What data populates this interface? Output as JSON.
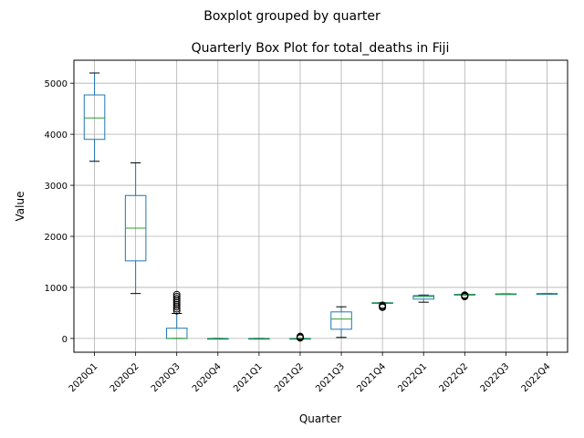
{
  "chart_data": {
    "type": "box",
    "suptitle": "Boxplot grouped by quarter",
    "title": "Quarterly Box Plot for total_deaths in Fiji",
    "xlabel": "Quarter",
    "ylabel": "Value",
    "ylim": [
      -270,
      5450
    ],
    "yticks": [
      0,
      1000,
      2000,
      3000,
      4000,
      5000
    ],
    "grid": true,
    "colors": {
      "box": "#1f77b4",
      "median": "#2ca02c",
      "whisker": "#000000",
      "grid": "#b0b0b0"
    },
    "categories": [
      "2020Q1",
      "2020Q2",
      "2020Q3",
      "2020Q4",
      "2021Q1",
      "2021Q2",
      "2021Q3",
      "2021Q4",
      "2022Q1",
      "2022Q2",
      "2022Q3",
      "2022Q4"
    ],
    "boxes": [
      {
        "low": 3470,
        "q1": 3900,
        "median": 4320,
        "q3": 4770,
        "high": 5200,
        "outliers": []
      },
      {
        "low": 880,
        "q1": 1520,
        "median": 2160,
        "q3": 2800,
        "high": 3440,
        "outliers": []
      },
      {
        "low": 0,
        "q1": 0,
        "median": 0,
        "q3": 200,
        "high": 490,
        "outliers": [
          540,
          580,
          620,
          660,
          700,
          740,
          780,
          820,
          860
        ]
      },
      {
        "low": 0,
        "q1": 0,
        "median": 0,
        "q3": 0,
        "high": 0,
        "outliers": []
      },
      {
        "low": 0,
        "q1": 0,
        "median": 0,
        "q3": 0,
        "high": 0,
        "outliers": []
      },
      {
        "low": 0,
        "q1": 0,
        "median": 0,
        "q3": 0,
        "high": 0,
        "outliers": [
          10,
          20,
          30,
          40
        ]
      },
      {
        "low": 20,
        "q1": 180,
        "median": 380,
        "q3": 520,
        "high": 620,
        "outliers": []
      },
      {
        "low": 690,
        "q1": 690,
        "median": 695,
        "q3": 700,
        "high": 700,
        "outliers": [
          610,
          630,
          650
        ]
      },
      {
        "low": 710,
        "q1": 770,
        "median": 820,
        "q3": 840,
        "high": 850,
        "outliers": []
      },
      {
        "low": 860,
        "q1": 860,
        "median": 862,
        "q3": 864,
        "high": 866,
        "outliers": [
          820,
          830,
          840,
          850
        ]
      },
      {
        "low": 866,
        "q1": 868,
        "median": 870,
        "q3": 874,
        "high": 876,
        "outliers": []
      },
      {
        "low": 876,
        "q1": 877,
        "median": 878,
        "q3": 879,
        "high": 880,
        "outliers": []
      }
    ]
  }
}
